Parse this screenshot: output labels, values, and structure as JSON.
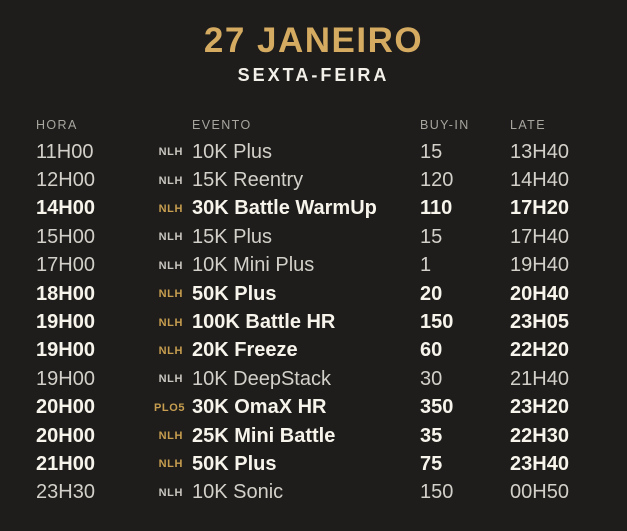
{
  "page": {
    "background_color": "#1e1d1b",
    "accent_gold": "#d5ab61",
    "tag_gold": "#c79e4f",
    "text_regular_color": "#d3d0c9",
    "text_highlight_color": "#f7f4ec",
    "column_header_color": "#a9a69f"
  },
  "header": {
    "title": "27 JANEIRO",
    "subtitle": "SEXTA-FEIRA"
  },
  "table": {
    "columns": {
      "hora": "HORA",
      "evento": "EVENTO",
      "buyin": "BUY-IN",
      "late": "LATE"
    },
    "rows": [
      {
        "hora": "11H00",
        "tag": "NLH",
        "evento": "10K Plus",
        "buyin": "15",
        "late": "13H40",
        "highlight": false
      },
      {
        "hora": "12H00",
        "tag": "NLH",
        "evento": "15K Reentry",
        "buyin": "120",
        "late": "14H40",
        "highlight": false
      },
      {
        "hora": "14H00",
        "tag": "NLH",
        "evento": "30K Battle WarmUp",
        "buyin": "110",
        "late": "17H20",
        "highlight": true
      },
      {
        "hora": "15H00",
        "tag": "NLH",
        "evento": "15K Plus",
        "buyin": "15",
        "late": "17H40",
        "highlight": false
      },
      {
        "hora": "17H00",
        "tag": "NLH",
        "evento": "10K Mini Plus",
        "buyin": "1",
        "late": "19H40",
        "highlight": false
      },
      {
        "hora": "18H00",
        "tag": "NLH",
        "evento": "50K Plus",
        "buyin": "20",
        "late": "20H40",
        "highlight": true
      },
      {
        "hora": "19H00",
        "tag": "NLH",
        "evento": "100K Battle HR",
        "buyin": "150",
        "late": "23H05",
        "highlight": true
      },
      {
        "hora": "19H00",
        "tag": "NLH",
        "evento": "20K Freeze",
        "buyin": "60",
        "late": "22H20",
        "highlight": true
      },
      {
        "hora": "19H00",
        "tag": "NLH",
        "evento": "10K DeepStack",
        "buyin": "30",
        "late": "21H40",
        "highlight": false
      },
      {
        "hora": "20H00",
        "tag": "PLO5",
        "evento": "30K OmaX HR",
        "buyin": "350",
        "late": "23H20",
        "highlight": true
      },
      {
        "hora": "20H00",
        "tag": "NLH",
        "evento": "25K Mini Battle",
        "buyin": "35",
        "late": "22H30",
        "highlight": true
      },
      {
        "hora": "21H00",
        "tag": "NLH",
        "evento": "50K Plus",
        "buyin": "75",
        "late": "23H40",
        "highlight": true
      },
      {
        "hora": "23H30",
        "tag": "NLH",
        "evento": "10K Sonic",
        "buyin": "150",
        "late": "00H50",
        "highlight": false
      }
    ]
  }
}
